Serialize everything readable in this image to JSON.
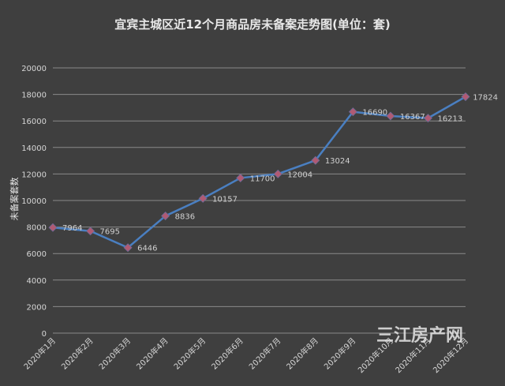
{
  "chart_data": {
    "type": "line",
    "title": "宜宾主城区近12个月商品房未备案走势图(单位：套)",
    "ylabel": "未备案套数",
    "xlabel": "",
    "categories": [
      "2020年1月",
      "2020年2月",
      "2020年3月",
      "2020年4月",
      "2020年5月",
      "2020年6月",
      "2020年7月",
      "2020年8月",
      "2020年9月",
      "2020年10月",
      "2020年11月",
      "2020年12月"
    ],
    "series": [
      {
        "values": [
          7964,
          7695,
          6446,
          8836,
          10157,
          11700,
          12004,
          13024,
          16690,
          16367,
          16213,
          17824
        ]
      }
    ],
    "ylim": [
      0,
      20000
    ],
    "yticks": [
      0,
      2000,
      4000,
      6000,
      8000,
      10000,
      12000,
      14000,
      16000,
      18000,
      20000
    ],
    "grid": true,
    "data_labels": true,
    "legend": "none",
    "colors": {
      "background": "#3f3f3f",
      "line": "#4a7fc1",
      "marker": "#b05a73",
      "grid": "#8a8a8a",
      "text": "#d6d6d6"
    }
  },
  "watermark": "三江房产网"
}
